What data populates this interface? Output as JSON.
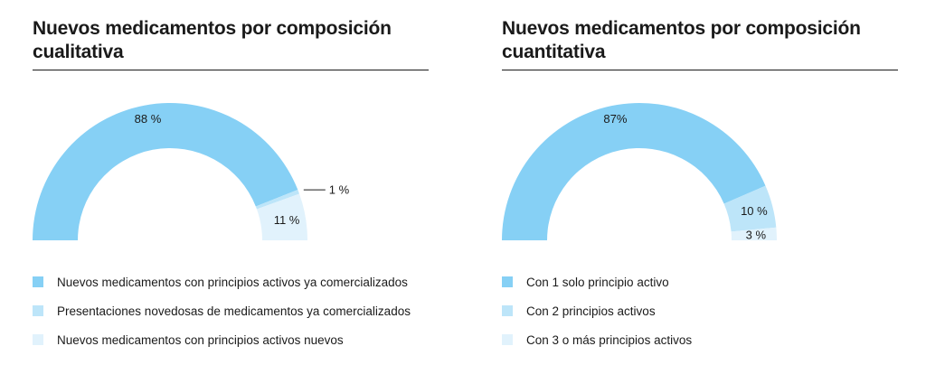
{
  "colors": {
    "series_1": "#86d0f5",
    "series_2": "#bde5f9",
    "series_3": "#e1f2fc",
    "text": "#1a1a1a"
  },
  "chart_data": [
    {
      "type": "pie",
      "title": "Nuevos medicamentos por composición cualitativa",
      "categories": [
        "Nuevos medicamentos con principios activos ya comercializados",
        "Presentaciones novedosas de medicamentos ya comercializados",
        "Nuevos medicamentos con principios activos nuevos"
      ],
      "values": [
        88,
        1,
        11
      ],
      "value_labels": [
        "88 %",
        "1 %",
        "11 %"
      ],
      "legend_position": "bottom"
    },
    {
      "type": "pie",
      "title": "Nuevos medicamentos por composición cuantitativa",
      "categories": [
        "Con 1 solo principio activo",
        "Con 2 principios activos",
        "Con 3 o más principios activos"
      ],
      "values": [
        87,
        10,
        3
      ],
      "value_labels": [
        "87%",
        "10 %",
        "3 %"
      ],
      "legend_position": "bottom"
    }
  ]
}
